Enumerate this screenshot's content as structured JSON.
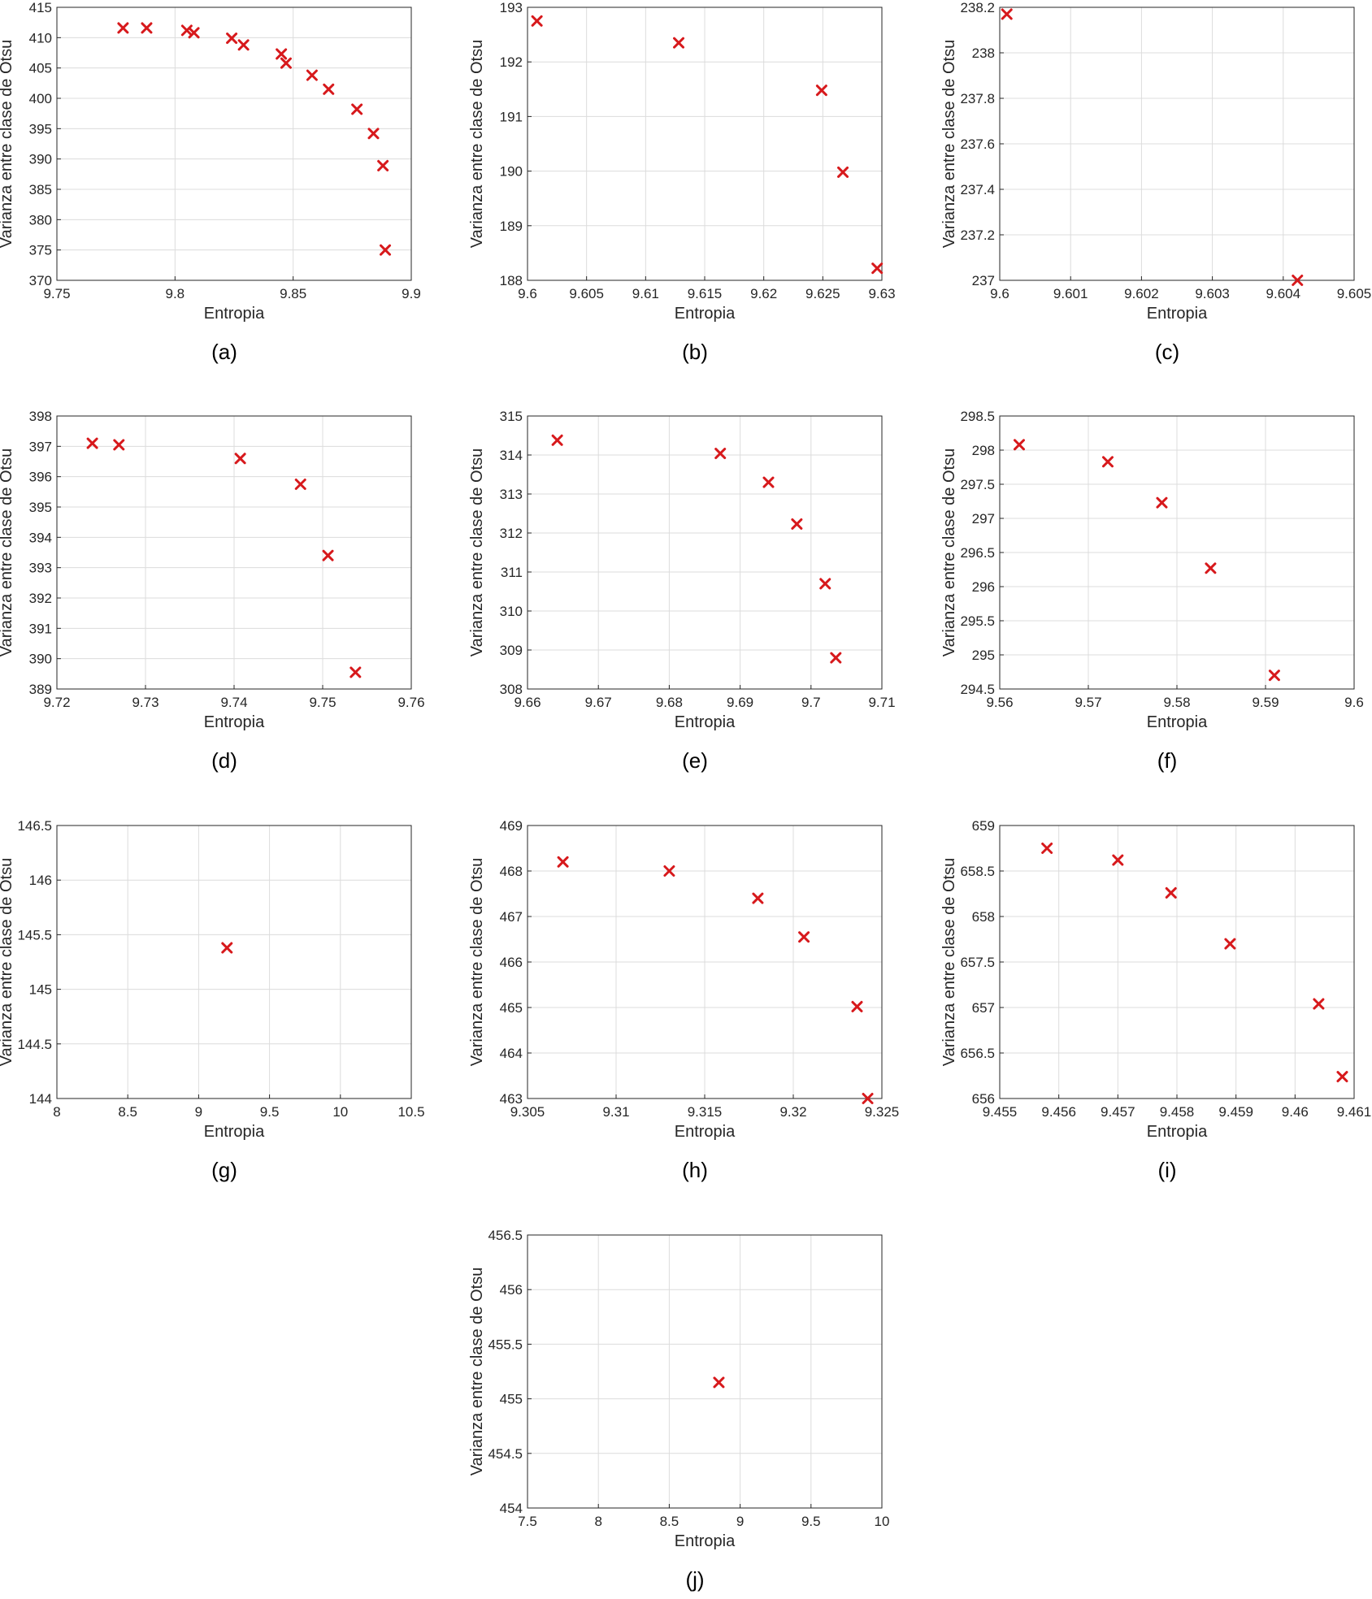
{
  "figure": {
    "marker_color": "#d7191c",
    "grid_color": "#dcdcdc",
    "axes_color": "#262626"
  },
  "chart_data": [
    {
      "type": "scatter",
      "caption": "(a)",
      "xlabel": "Entropia",
      "ylabel": "Varianza entre clase de Otsu",
      "xlim": [
        9.75,
        9.9
      ],
      "ylim": [
        370,
        415
      ],
      "xticks": [
        9.75,
        9.8,
        9.85,
        9.9
      ],
      "xtick_labels": [
        "9.75",
        "9.8",
        "9.85",
        "9.9"
      ],
      "yticks": [
        370,
        375,
        380,
        385,
        390,
        395,
        400,
        405,
        410,
        415
      ],
      "ytick_labels": [
        "370",
        "375",
        "380",
        "385",
        "390",
        "395",
        "400",
        "405",
        "410",
        "415"
      ],
      "points": [
        {
          "x": 9.778,
          "y": 411.6
        },
        {
          "x": 9.788,
          "y": 411.6
        },
        {
          "x": 9.805,
          "y": 411.2
        },
        {
          "x": 9.808,
          "y": 410.8
        },
        {
          "x": 9.824,
          "y": 409.9
        },
        {
          "x": 9.829,
          "y": 408.8
        },
        {
          "x": 9.845,
          "y": 407.3
        },
        {
          "x": 9.847,
          "y": 405.8
        },
        {
          "x": 9.858,
          "y": 403.8
        },
        {
          "x": 9.865,
          "y": 401.5
        },
        {
          "x": 9.877,
          "y": 398.2
        },
        {
          "x": 9.884,
          "y": 394.2
        },
        {
          "x": 9.888,
          "y": 388.9
        },
        {
          "x": 9.889,
          "y": 375.0
        }
      ]
    },
    {
      "type": "scatter",
      "caption": "(b)",
      "xlabel": "Entropia",
      "ylabel": "Varianza entre clase de Otsu",
      "xlim": [
        9.6,
        9.63
      ],
      "ylim": [
        188,
        193
      ],
      "xticks": [
        9.6,
        9.605,
        9.61,
        9.615,
        9.62,
        9.625,
        9.63
      ],
      "xtick_labels": [
        "9.6",
        "9.605",
        "9.61",
        "9.615",
        "9.62",
        "9.625",
        "9.63"
      ],
      "yticks": [
        188,
        189,
        190,
        191,
        192,
        193
      ],
      "ytick_labels": [
        "188",
        "189",
        "190",
        "191",
        "192",
        "193"
      ],
      "points": [
        {
          "x": 9.6008,
          "y": 192.75
        },
        {
          "x": 9.6128,
          "y": 192.35
        },
        {
          "x": 9.6249,
          "y": 191.48
        },
        {
          "x": 9.6267,
          "y": 189.98
        },
        {
          "x": 9.6296,
          "y": 188.22
        }
      ]
    },
    {
      "type": "scatter",
      "caption": "(c)",
      "xlabel": "Entropia",
      "ylabel": "Varianza entre clase de Otsu",
      "xlim": [
        9.6,
        9.605
      ],
      "ylim": [
        237,
        238.2
      ],
      "xticks": [
        9.6,
        9.601,
        9.602,
        9.603,
        9.604,
        9.605
      ],
      "xtick_labels": [
        "9.6",
        "9.601",
        "9.602",
        "9.603",
        "9.604",
        "9.605"
      ],
      "yticks": [
        237,
        237.2,
        237.4,
        237.6,
        237.8,
        238,
        238.2
      ],
      "ytick_labels": [
        "237",
        "237.2",
        "237.4",
        "237.6",
        "237.8",
        "238",
        "238.2"
      ],
      "points": [
        {
          "x": 9.6001,
          "y": 238.17
        },
        {
          "x": 9.6042,
          "y": 237.0
        }
      ]
    },
    {
      "type": "scatter",
      "caption": "(d)",
      "xlabel": "Entropia",
      "ylabel": "Varianza entre clase de Otsu",
      "xlim": [
        9.72,
        9.76
      ],
      "ylim": [
        389,
        398
      ],
      "xticks": [
        9.72,
        9.73,
        9.74,
        9.75,
        9.76
      ],
      "xtick_labels": [
        "9.72",
        "9.73",
        "9.74",
        "9.75",
        "9.76"
      ],
      "yticks": [
        389,
        390,
        391,
        392,
        393,
        394,
        395,
        396,
        397,
        398
      ],
      "ytick_labels": [
        "389",
        "390",
        "391",
        "392",
        "393",
        "394",
        "395",
        "396",
        "397",
        "398"
      ],
      "points": [
        {
          "x": 9.724,
          "y": 397.1
        },
        {
          "x": 9.727,
          "y": 397.05
        },
        {
          "x": 9.7407,
          "y": 396.6
        },
        {
          "x": 9.7475,
          "y": 395.75
        },
        {
          "x": 9.7506,
          "y": 393.4
        },
        {
          "x": 9.7537,
          "y": 389.55
        }
      ]
    },
    {
      "type": "scatter",
      "caption": "(e)",
      "xlabel": "Entropia",
      "ylabel": "Varianza entre clase de Otsu",
      "xlim": [
        9.66,
        9.71
      ],
      "ylim": [
        308,
        315
      ],
      "xticks": [
        9.66,
        9.67,
        9.68,
        9.69,
        9.7,
        9.71
      ],
      "xtick_labels": [
        "9.66",
        "9.67",
        "9.68",
        "9.69",
        "9.7",
        "9.71"
      ],
      "yticks": [
        308,
        309,
        310,
        311,
        312,
        313,
        314,
        315
      ],
      "ytick_labels": [
        "308",
        "309",
        "310",
        "311",
        "312",
        "313",
        "314",
        "315"
      ],
      "points": [
        {
          "x": 9.6642,
          "y": 314.38
        },
        {
          "x": 9.6872,
          "y": 314.04
        },
        {
          "x": 9.694,
          "y": 313.3
        },
        {
          "x": 9.698,
          "y": 312.23
        },
        {
          "x": 9.702,
          "y": 310.7
        },
        {
          "x": 9.7035,
          "y": 308.8
        }
      ]
    },
    {
      "type": "scatter",
      "caption": "(f)",
      "xlabel": "Entropia",
      "ylabel": "Varianza entre clase de Otsu",
      "xlim": [
        9.56,
        9.6
      ],
      "ylim": [
        294.5,
        298.5
      ],
      "xticks": [
        9.56,
        9.57,
        9.58,
        9.59,
        9.6
      ],
      "xtick_labels": [
        "9.56",
        "9.57",
        "9.58",
        "9.59",
        "9.6"
      ],
      "yticks": [
        294.5,
        295,
        295.5,
        296,
        296.5,
        297,
        297.5,
        298,
        298.5
      ],
      "ytick_labels": [
        "294.5",
        "295",
        "295.5",
        "296",
        "296.5",
        "297",
        "297.5",
        "298",
        "298.5"
      ],
      "points": [
        {
          "x": 9.5622,
          "y": 298.08
        },
        {
          "x": 9.5722,
          "y": 297.83
        },
        {
          "x": 9.5783,
          "y": 297.23
        },
        {
          "x": 9.5838,
          "y": 296.27
        },
        {
          "x": 9.591,
          "y": 294.7
        }
      ]
    },
    {
      "type": "scatter",
      "caption": "(g)",
      "xlabel": "Entropia",
      "ylabel": "Varianza entre clase de Otsu",
      "xlim": [
        8,
        10.5
      ],
      "ylim": [
        144,
        146.5
      ],
      "xticks": [
        8,
        8.5,
        9,
        9.5,
        10,
        10.5
      ],
      "xtick_labels": [
        "8",
        "8.5",
        "9",
        "9.5",
        "10",
        "10.5"
      ],
      "yticks": [
        144,
        144.5,
        145,
        145.5,
        146,
        146.5
      ],
      "ytick_labels": [
        "144",
        "144.5",
        "145",
        "145.5",
        "146",
        "146.5"
      ],
      "points": [
        {
          "x": 9.2,
          "y": 145.38
        }
      ]
    },
    {
      "type": "scatter",
      "caption": "(h)",
      "xlabel": "Entropia",
      "ylabel": "Varianza entre clase de Otsu",
      "xlim": [
        9.305,
        9.325
      ],
      "ylim": [
        463,
        469
      ],
      "xticks": [
        9.305,
        9.31,
        9.315,
        9.32,
        9.325
      ],
      "xtick_labels": [
        "9.305",
        "9.31",
        "9.315",
        "9.32",
        "9.325"
      ],
      "yticks": [
        463,
        464,
        465,
        466,
        467,
        468,
        469
      ],
      "ytick_labels": [
        "463",
        "464",
        "465",
        "466",
        "467",
        "468",
        "469"
      ],
      "points": [
        {
          "x": 9.307,
          "y": 468.2
        },
        {
          "x": 9.313,
          "y": 468.0
        },
        {
          "x": 9.318,
          "y": 467.4
        },
        {
          "x": 9.3206,
          "y": 466.55
        },
        {
          "x": 9.3236,
          "y": 465.02
        },
        {
          "x": 9.3242,
          "y": 463.0
        }
      ]
    },
    {
      "type": "scatter",
      "caption": "(i)",
      "xlabel": "Entropia",
      "ylabel": "Varianza entre clase de Otsu",
      "xlim": [
        9.455,
        9.461
      ],
      "ylim": [
        656,
        659
      ],
      "xticks": [
        9.455,
        9.456,
        9.457,
        9.458,
        9.459,
        9.46,
        9.461
      ],
      "xtick_labels": [
        "9.455",
        "9.456",
        "9.457",
        "9.458",
        "9.459",
        "9.46",
        "9.461"
      ],
      "yticks": [
        656,
        656.5,
        657,
        657.5,
        658,
        658.5,
        659
      ],
      "ytick_labels": [
        "656",
        "656.5",
        "657",
        "657.5",
        "658",
        "658.5",
        "659"
      ],
      "points": [
        {
          "x": 9.4558,
          "y": 658.75
        },
        {
          "x": 9.457,
          "y": 658.62
        },
        {
          "x": 9.4579,
          "y": 658.26
        },
        {
          "x": 9.4589,
          "y": 657.7
        },
        {
          "x": 9.4604,
          "y": 657.04
        },
        {
          "x": 9.4608,
          "y": 656.24
        }
      ]
    },
    {
      "type": "scatter",
      "caption": "(j)",
      "xlabel": "Entropia",
      "ylabel": "Varianza entre clase de Otsu",
      "xlim": [
        7.5,
        10
      ],
      "ylim": [
        454,
        456.5
      ],
      "xticks": [
        7.5,
        8,
        8.5,
        9,
        9.5,
        10
      ],
      "xtick_labels": [
        "7.5",
        "8",
        "8.5",
        "9",
        "9.5",
        "10"
      ],
      "yticks": [
        454,
        454.5,
        455,
        455.5,
        456,
        456.5
      ],
      "ytick_labels": [
        "454",
        "454.5",
        "455",
        "455.5",
        "456",
        "456.5"
      ],
      "points": [
        {
          "x": 8.85,
          "y": 455.15
        }
      ]
    }
  ]
}
